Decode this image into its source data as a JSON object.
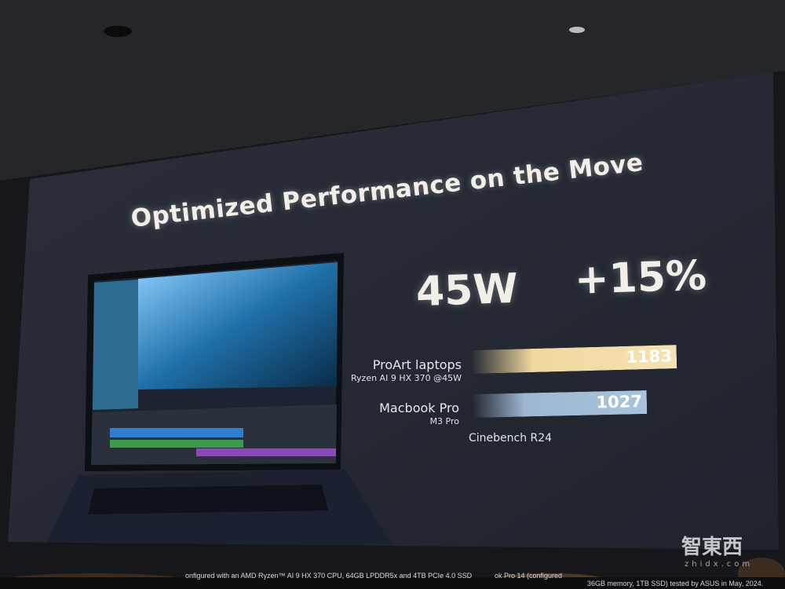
{
  "slide": {
    "title": "Optimized Performance on the Move",
    "stat_power": "45W",
    "stat_gain": "+15%",
    "footnote_left": "onfigured with an AMD Ryzen™ AI 9 HX 370 CPU, 64GB LPDDR5x and 4TB PCIe 4.0 SSD",
    "footnote_mid": "ok Pro 14 (configured",
    "footnote_right": "36GB memory, 1TB SSD) tested by ASUS in May, 2024."
  },
  "chart_data": {
    "type": "bar",
    "orientation": "horizontal",
    "categories": [
      "ProArt laptops",
      "Macbook Pro"
    ],
    "subcategories": [
      "Ryzen AI 9 HX 370 @45W",
      "M3 Pro"
    ],
    "values": [
      1183,
      1027
    ],
    "value_labels": [
      "1183",
      "1027"
    ],
    "xlabel": "Cinebench R24",
    "colors": [
      "#f0d8a0",
      "#9db8d0"
    ]
  },
  "watermark": {
    "logo_text": "智東西",
    "url_text": "zhidx.com"
  }
}
